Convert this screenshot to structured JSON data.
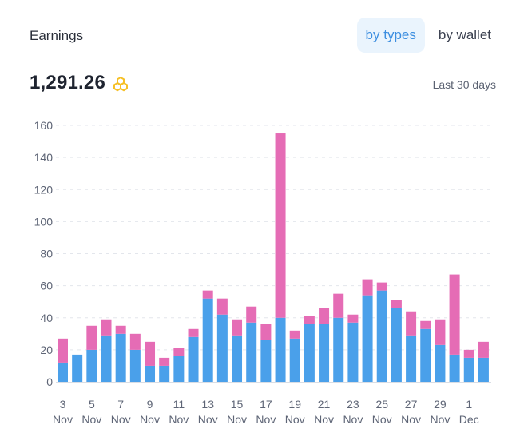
{
  "header": {
    "title": "Earnings",
    "tabs": [
      {
        "label": "by types",
        "active": true
      },
      {
        "label": "by wallet",
        "active": false
      }
    ],
    "total": "1,291.26",
    "currency_icon": "hexagon-coin-icon",
    "period": "Last 30 days"
  },
  "colors": {
    "series_blue": "#4aa0ea",
    "series_pink": "#e56cb5",
    "accent": "#3c8ee0",
    "coin": "#f6c026"
  },
  "chart_data": {
    "type": "bar",
    "stacked": true,
    "categories": [
      "3 Nov",
      "4 Nov",
      "5 Nov",
      "6 Nov",
      "7 Nov",
      "8 Nov",
      "9 Nov",
      "10 Nov",
      "11 Nov",
      "12 Nov",
      "13 Nov",
      "14 Nov",
      "15 Nov",
      "16 Nov",
      "17 Nov",
      "18 Nov",
      "19 Nov",
      "20 Nov",
      "21 Nov",
      "22 Nov",
      "23 Nov",
      "24 Nov",
      "25 Nov",
      "26 Nov",
      "27 Nov",
      "28 Nov",
      "29 Nov",
      "30 Nov",
      "1 Dec",
      "2 Dec"
    ],
    "x_tick_labels": [
      {
        "day": "3",
        "month": "Nov"
      },
      {
        "day": "5",
        "month": "Nov"
      },
      {
        "day": "7",
        "month": "Nov"
      },
      {
        "day": "9",
        "month": "Nov"
      },
      {
        "day": "11",
        "month": "Nov"
      },
      {
        "day": "13",
        "month": "Nov"
      },
      {
        "day": "15",
        "month": "Nov"
      },
      {
        "day": "17",
        "month": "Nov"
      },
      {
        "day": "19",
        "month": "Nov"
      },
      {
        "day": "21",
        "month": "Nov"
      },
      {
        "day": "23",
        "month": "Nov"
      },
      {
        "day": "25",
        "month": "Nov"
      },
      {
        "day": "27",
        "month": "Nov"
      },
      {
        "day": "29",
        "month": "Nov"
      },
      {
        "day": "1",
        "month": "Dec"
      }
    ],
    "series": [
      {
        "color": "#4aa0ea",
        "values": [
          12,
          17,
          20,
          29,
          30,
          20,
          10,
          10,
          16,
          28,
          52,
          42,
          29,
          37,
          26,
          40,
          27,
          36,
          36,
          40,
          37,
          54,
          57,
          46,
          29,
          33,
          23,
          17,
          15,
          15
        ]
      },
      {
        "color": "#e56cb5",
        "values": [
          15,
          0,
          15,
          10,
          5,
          10,
          15,
          5,
          5,
          5,
          5,
          10,
          10,
          10,
          10,
          115,
          5,
          5,
          10,
          15,
          5,
          10,
          5,
          5,
          15,
          5,
          16,
          50,
          5,
          10
        ]
      }
    ],
    "ylim": [
      0,
      160
    ],
    "yticks": [
      0,
      20,
      40,
      60,
      80,
      100,
      120,
      140,
      160
    ],
    "grid": true,
    "legend": "none"
  }
}
